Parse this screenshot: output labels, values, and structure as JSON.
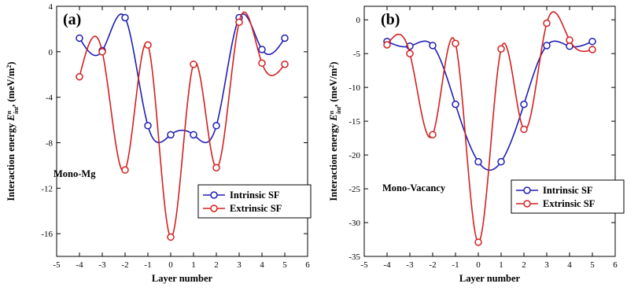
{
  "chart_data": [
    {
      "type": "line",
      "panel_label": "(a)",
      "annotation": "Mono-Mg",
      "xlabel": "Layer number",
      "ylabel": "Interaction energy",
      "ylabel_symbol": "E",
      "ylabel_sup": "n",
      "ylabel_sub": "int",
      "ylabel_unit": ", (meV/m",
      "ylabel_unit_sup": "2",
      "ylabel_unit_end": ")",
      "xlim": [
        -5,
        6
      ],
      "ylim": [
        -18,
        4
      ],
      "xticks": [
        -5,
        -4,
        -3,
        -2,
        -1,
        0,
        1,
        2,
        3,
        4,
        5,
        6
      ],
      "yticks": [
        -16,
        -12,
        -8,
        -4,
        0,
        4
      ],
      "legend_position": "lower-right",
      "series": [
        {
          "name": "Intrinsic SF",
          "color": "#1f1fb4",
          "x": [
            -4,
            -3,
            -2,
            -1,
            0,
            1,
            2,
            3,
            4,
            5
          ],
          "values": [
            1.2,
            0.1,
            3.0,
            -6.5,
            -7.3,
            -7.3,
            -6.5,
            3.0,
            0.2,
            1.2
          ]
        },
        {
          "name": "Extrinsic SF",
          "color": "#d42020",
          "x": [
            -4,
            -3,
            -2,
            -1,
            0,
            1,
            2,
            3,
            4,
            5
          ],
          "values": [
            -2.2,
            0.0,
            -10.4,
            0.6,
            -16.3,
            -1.1,
            -10.2,
            2.6,
            -1.0,
            -1.1
          ]
        }
      ]
    },
    {
      "type": "line",
      "panel_label": "(b)",
      "annotation": "Mono-Vacancy",
      "xlabel": "Layer number",
      "ylabel": "Interaction energy",
      "ylabel_symbol": "E",
      "ylabel_sup": "n",
      "ylabel_sub": "int",
      "ylabel_unit": ", (meV/m",
      "ylabel_unit_sup": "2",
      "ylabel_unit_end": ")",
      "xlim": [
        -5,
        6
      ],
      "ylim": [
        -35,
        2
      ],
      "xticks": [
        -5,
        -4,
        -3,
        -2,
        -1,
        0,
        1,
        2,
        3,
        4,
        5,
        6
      ],
      "yticks": [
        -35,
        -30,
        -25,
        -20,
        -15,
        -10,
        -5,
        0
      ],
      "legend_position": "lower-right",
      "series": [
        {
          "name": "Intrinsic SF",
          "color": "#1f1fb4",
          "x": [
            -4,
            -3,
            -2,
            -1,
            0,
            1,
            2,
            3,
            4,
            5
          ],
          "values": [
            -3.2,
            -3.9,
            -3.8,
            -12.5,
            -21.0,
            -21.0,
            -12.5,
            -3.8,
            -3.9,
            -3.2
          ]
        },
        {
          "name": "Extrinsic SF",
          "color": "#d42020",
          "x": [
            -4,
            -3,
            -2,
            -1,
            0,
            1,
            2,
            3,
            4,
            5
          ],
          "values": [
            -3.7,
            -5.0,
            -17.0,
            -3.5,
            -32.9,
            -4.3,
            -16.2,
            -0.5,
            -3.0,
            -4.4
          ]
        }
      ]
    }
  ]
}
